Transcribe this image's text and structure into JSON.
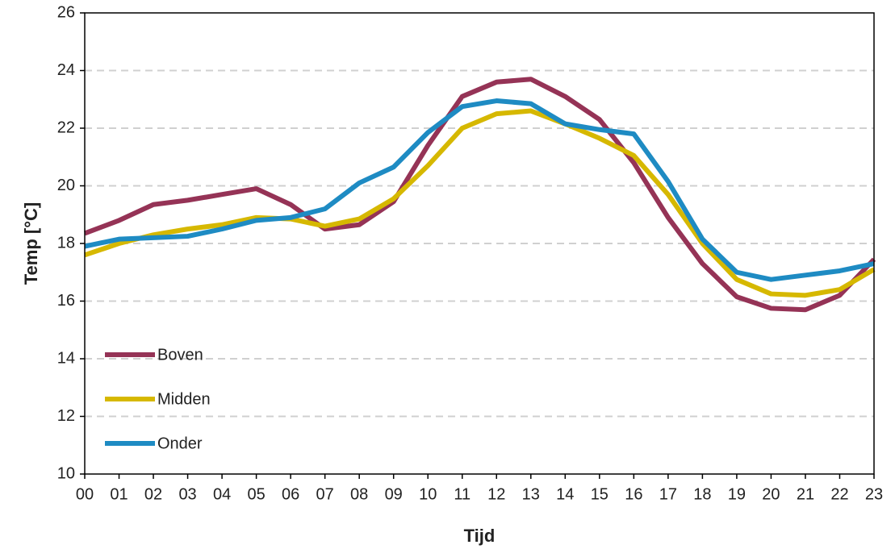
{
  "chart_data": {
    "type": "line",
    "x_label": "Tijd",
    "y_label": "Temp [°C]",
    "categories": [
      "00",
      "01",
      "02",
      "03",
      "04",
      "05",
      "06",
      "07",
      "08",
      "09",
      "10",
      "11",
      "12",
      "13",
      "14",
      "15",
      "16",
      "17",
      "18",
      "19",
      "20",
      "21",
      "22",
      "23"
    ],
    "series": [
      {
        "name": "Boven",
        "color": "#953356",
        "values": [
          18.35,
          18.8,
          19.35,
          19.5,
          19.7,
          19.9,
          19.35,
          18.5,
          18.65,
          19.45,
          21.4,
          23.1,
          23.6,
          23.7,
          23.1,
          22.3,
          20.8,
          18.9,
          17.3,
          16.15,
          15.75,
          15.7,
          16.2,
          17.45
        ]
      },
      {
        "name": "Midden",
        "color": "#d6b800",
        "values": [
          17.6,
          18.0,
          18.3,
          18.5,
          18.65,
          18.9,
          18.85,
          18.6,
          18.85,
          19.55,
          20.7,
          22.0,
          22.5,
          22.6,
          22.15,
          21.65,
          21.05,
          19.7,
          18.0,
          16.75,
          16.25,
          16.2,
          16.4,
          17.1
        ]
      },
      {
        "name": "Onder",
        "color": "#1e8bc3",
        "values": [
          17.9,
          18.15,
          18.2,
          18.25,
          18.5,
          18.8,
          18.9,
          19.2,
          20.1,
          20.65,
          21.85,
          22.75,
          22.95,
          22.85,
          22.15,
          21.95,
          21.8,
          20.15,
          18.15,
          17.0,
          16.75,
          16.9,
          17.05,
          17.3
        ]
      }
    ],
    "ylim": [
      10,
      26
    ],
    "yticks": [
      10,
      12,
      14,
      16,
      18,
      20,
      22,
      24,
      26
    ],
    "grid": true,
    "legend": "lower left"
  }
}
